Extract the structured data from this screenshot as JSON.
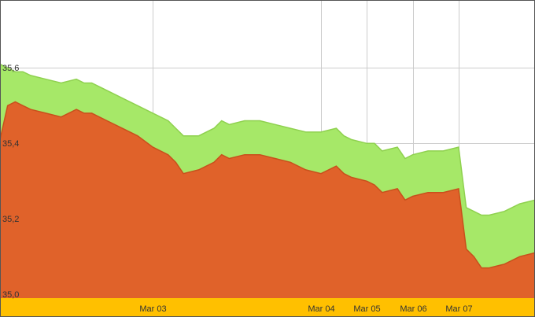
{
  "chart_data": {
    "type": "area",
    "x_unit": "trading session index",
    "x_tick_labels": [
      {
        "label": "Mar 03",
        "x": 10
      },
      {
        "label": "Mar 04",
        "x": 21
      },
      {
        "label": "Mar 05",
        "x": 24
      },
      {
        "label": "Mar 06",
        "x": 27
      },
      {
        "label": "Mar 07",
        "x": 30
      }
    ],
    "y_tick_labels": [
      "35,0",
      "35,2",
      "35,4",
      "35,6"
    ],
    "y_ticks": [
      35.0,
      35.2,
      35.4,
      35.6
    ],
    "ylim": [
      34.99,
      35.78
    ],
    "xlim": [
      0,
      35
    ],
    "grid": true,
    "colors": {
      "lower": "#e0622a",
      "upper": "#a6e868",
      "upper_line": "#8fd14f",
      "axis_band": "#ffc000",
      "grid": "#cccccc",
      "border": "#555555"
    },
    "series": [
      {
        "color": "#e0622a",
        "x": [
          0,
          0.5,
          1,
          1.5,
          2,
          3,
          4,
          5,
          5.5,
          6,
          7,
          8,
          9,
          10,
          11,
          11.5,
          12,
          13,
          14,
          14.5,
          15,
          16,
          17,
          18,
          19,
          20,
          21,
          22,
          22.5,
          23,
          24,
          24.5,
          25,
          26,
          26.5,
          27,
          28,
          29,
          30,
          30.5,
          31,
          31.5,
          32,
          33,
          34,
          35
        ],
        "values": [
          35.41,
          35.5,
          35.51,
          35.5,
          35.49,
          35.48,
          35.47,
          35.49,
          35.48,
          35.48,
          35.46,
          35.44,
          35.42,
          35.39,
          35.37,
          35.35,
          35.32,
          35.33,
          35.35,
          35.37,
          35.36,
          35.37,
          35.37,
          35.36,
          35.35,
          35.33,
          35.32,
          35.34,
          35.32,
          35.31,
          35.3,
          35.29,
          35.27,
          35.28,
          35.25,
          35.26,
          35.27,
          35.27,
          35.28,
          35.12,
          35.1,
          35.07,
          35.07,
          35.08,
          35.1,
          35.11
        ]
      },
      {
        "color": "#a6e868",
        "x": [
          0,
          0.5,
          1,
          1.5,
          2,
          3,
          4,
          5,
          5.5,
          6,
          7,
          8,
          9,
          10,
          11,
          11.5,
          12,
          13,
          14,
          14.5,
          15,
          16,
          17,
          18,
          19,
          20,
          21,
          22,
          22.5,
          23,
          24,
          24.5,
          25,
          26,
          26.5,
          27,
          28,
          29,
          30,
          30.5,
          31,
          31.5,
          32,
          33,
          34,
          35
        ],
        "values": [
          35.61,
          35.6,
          35.59,
          35.59,
          35.58,
          35.57,
          35.56,
          35.57,
          35.56,
          35.56,
          35.54,
          35.52,
          35.5,
          35.48,
          35.46,
          35.44,
          35.42,
          35.42,
          35.44,
          35.46,
          35.45,
          35.46,
          35.46,
          35.45,
          35.44,
          35.43,
          35.43,
          35.44,
          35.42,
          35.41,
          35.4,
          35.4,
          35.38,
          35.39,
          35.36,
          35.37,
          35.38,
          35.38,
          35.39,
          35.23,
          35.22,
          35.21,
          35.21,
          35.22,
          35.24,
          35.25
        ]
      }
    ]
  }
}
